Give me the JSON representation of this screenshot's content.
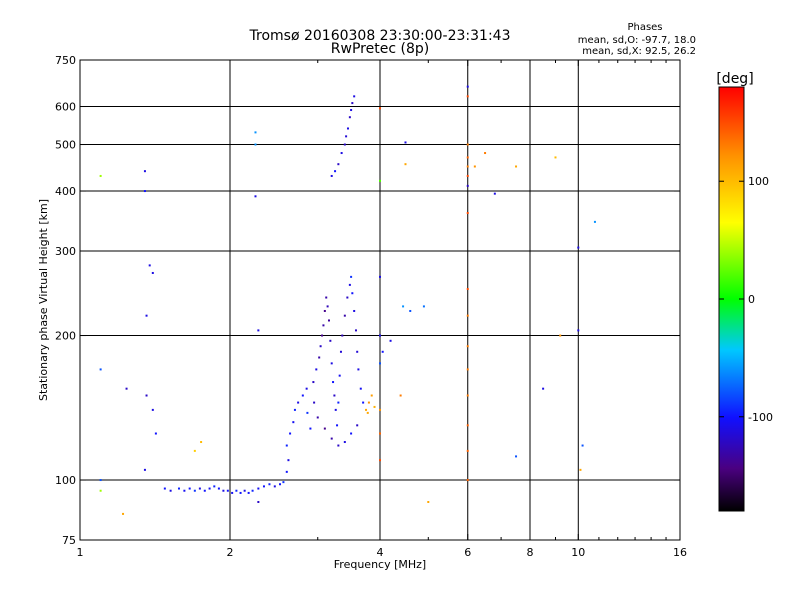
{
  "chart_data": {
    "type": "scatter",
    "title": "Tromsø 20160308 23:30:00-23:31:43",
    "subtitle": "RwPretec (8p)",
    "info": {
      "heading": "Phases",
      "line1": "mean, sd,O: -97.7, 18.0",
      "line2": "mean, sd,X:  92.5, 26.2"
    },
    "xlabel": "Frequency [MHz]",
    "ylabel": "Stationary phase Virtual Height [km]",
    "xscale": "log",
    "yscale": "log",
    "xlim": [
      1,
      16
    ],
    "ylim": [
      75,
      750
    ],
    "xticks": [
      1,
      2,
      4,
      6,
      8,
      10,
      16
    ],
    "xticklabels": [
      "1",
      "2",
      "4",
      "6",
      "8",
      "10",
      "16"
    ],
    "yticks": [
      75,
      100,
      200,
      300,
      400,
      500,
      600,
      750
    ],
    "yticklabels": [
      "75",
      "100",
      "200",
      "300",
      "400",
      "500",
      "600",
      "750"
    ],
    "grid_x": [
      2,
      4,
      6,
      8,
      10
    ],
    "grid_y": [
      100,
      200,
      300,
      400,
      500,
      600
    ],
    "colorbar": {
      "label": "[deg]",
      "range": [
        -180,
        180
      ],
      "ticks": [
        100,
        0,
        -100
      ],
      "ticklabels": [
        "100",
        "0",
        "-100"
      ]
    },
    "series": [
      {
        "points": [
          [
            1.48,
            96,
            -100
          ],
          [
            1.52,
            95,
            -110
          ],
          [
            1.58,
            96,
            -95
          ],
          [
            1.62,
            95,
            -105
          ],
          [
            1.66,
            96,
            -100
          ],
          [
            1.7,
            95,
            -90
          ],
          [
            1.74,
            96,
            -110
          ],
          [
            1.78,
            95,
            -100
          ],
          [
            1.82,
            96,
            -105
          ],
          [
            1.86,
            97,
            -95
          ],
          [
            1.9,
            96,
            -100
          ],
          [
            1.94,
            95,
            -110
          ],
          [
            1.98,
            95,
            -100
          ],
          [
            2.02,
            94,
            -105
          ],
          [
            2.06,
            95,
            -95
          ],
          [
            2.1,
            94,
            -100
          ],
          [
            2.14,
            95,
            -110
          ],
          [
            2.18,
            94,
            -100
          ],
          [
            2.22,
            95,
            -95
          ],
          [
            2.28,
            96,
            -105
          ],
          [
            2.34,
            97,
            -100
          ],
          [
            2.4,
            98,
            -95
          ],
          [
            2.46,
            97,
            -110
          ],
          [
            2.52,
            98,
            -100
          ],
          [
            2.56,
            99,
            -90
          ],
          [
            2.6,
            104,
            -100
          ],
          [
            2.62,
            110,
            -110
          ],
          [
            2.6,
            118,
            -95
          ],
          [
            2.64,
            125,
            -100
          ],
          [
            2.68,
            132,
            -105
          ],
          [
            2.7,
            140,
            -95
          ],
          [
            2.74,
            145,
            -110
          ],
          [
            2.8,
            150,
            -100
          ],
          [
            2.86,
            138,
            -90
          ],
          [
            2.9,
            128,
            -100
          ],
          [
            2.94,
            160,
            -120
          ],
          [
            2.98,
            170,
            -110
          ],
          [
            3.02,
            180,
            -130
          ],
          [
            3.04,
            190,
            -120
          ],
          [
            3.06,
            200,
            -140
          ],
          [
            3.08,
            210,
            -130
          ],
          [
            3.1,
            225,
            -140
          ],
          [
            3.12,
            240,
            -130
          ],
          [
            3.14,
            230,
            -125
          ],
          [
            3.16,
            215,
            -135
          ],
          [
            3.18,
            195,
            -120
          ],
          [
            3.2,
            175,
            -110
          ],
          [
            3.22,
            160,
            -100
          ],
          [
            3.24,
            150,
            -120
          ],
          [
            3.26,
            140,
            -110
          ],
          [
            3.28,
            130,
            -100
          ],
          [
            3.3,
            145,
            -95
          ],
          [
            3.32,
            165,
            -105
          ],
          [
            3.34,
            185,
            -115
          ],
          [
            3.36,
            200,
            -125
          ],
          [
            3.4,
            220,
            -130
          ],
          [
            3.44,
            240,
            -120
          ],
          [
            3.48,
            255,
            -110
          ],
          [
            3.5,
            265,
            -90
          ],
          [
            3.52,
            245,
            -100
          ],
          [
            3.55,
            225,
            -110
          ],
          [
            3.58,
            205,
            -120
          ],
          [
            3.6,
            185,
            -115
          ],
          [
            3.62,
            170,
            -110
          ],
          [
            3.66,
            155,
            -105
          ],
          [
            3.7,
            145,
            -100
          ],
          [
            3.6,
            130,
            -120
          ],
          [
            3.5,
            125,
            -100
          ],
          [
            3.4,
            120,
            -110
          ],
          [
            3.3,
            118,
            -120
          ],
          [
            3.2,
            122,
            -130
          ],
          [
            3.1,
            128,
            -140
          ],
          [
            3.0,
            135,
            -130
          ],
          [
            2.95,
            145,
            -120
          ],
          [
            2.85,
            155,
            -110
          ],
          [
            3.75,
            140,
            110
          ],
          [
            3.8,
            145,
            120
          ],
          [
            3.85,
            150,
            115
          ],
          [
            3.9,
            142,
            105
          ],
          [
            3.78,
            138,
            110
          ],
          [
            3.2,
            430,
            -110
          ],
          [
            3.25,
            440,
            -100
          ],
          [
            3.3,
            455,
            -120
          ],
          [
            3.35,
            480,
            -110
          ],
          [
            3.4,
            500,
            -120
          ],
          [
            3.42,
            520,
            -115
          ],
          [
            3.45,
            540,
            -110
          ],
          [
            3.48,
            570,
            -120
          ],
          [
            3.5,
            590,
            -110
          ],
          [
            3.52,
            610,
            -120
          ],
          [
            3.55,
            630,
            -110
          ],
          [
            1.35,
            440,
            -110
          ],
          [
            1.35,
            400,
            -100
          ],
          [
            1.38,
            280,
            -110
          ],
          [
            1.4,
            270,
            -110
          ],
          [
            1.36,
            220,
            -110
          ],
          [
            1.36,
            150,
            -120
          ],
          [
            1.4,
            140,
            -110
          ],
          [
            1.42,
            125,
            -100
          ],
          [
            1.35,
            105,
            -110
          ],
          [
            1.24,
            155,
            -120
          ],
          [
            1.1,
            170,
            -80
          ],
          [
            1.1,
            100,
            -80
          ],
          [
            1.1,
            430,
            40
          ],
          [
            1.22,
            85,
            110
          ],
          [
            1.1,
            95,
            40
          ],
          [
            1.7,
            115,
            90
          ],
          [
            1.75,
            120,
            100
          ],
          [
            2.25,
            530,
            -60
          ],
          [
            2.25,
            500,
            -60
          ],
          [
            2.25,
            390,
            -110
          ],
          [
            2.28,
            205,
            -110
          ],
          [
            2.28,
            90,
            -120
          ],
          [
            4.0,
            595,
            150
          ],
          [
            4.0,
            420,
            20
          ],
          [
            4.0,
            265,
            -110
          ],
          [
            4.0,
            200,
            -110
          ],
          [
            4.05,
            185,
            -100
          ],
          [
            4.0,
            175,
            -80
          ],
          [
            4.2,
            195,
            -110
          ],
          [
            4.0,
            140,
            120
          ],
          [
            4.0,
            125,
            140
          ],
          [
            4.0,
            110,
            150
          ],
          [
            4.5,
            505,
            -110
          ],
          [
            4.5,
            455,
            110
          ],
          [
            4.45,
            230,
            -60
          ],
          [
            4.6,
            225,
            -80
          ],
          [
            4.9,
            230,
            -70
          ],
          [
            5.0,
            90,
            110
          ],
          [
            4.4,
            150,
            130
          ],
          [
            6.0,
            660,
            -110
          ],
          [
            6.0,
            630,
            150
          ],
          [
            6.0,
            500,
            130
          ],
          [
            6.0,
            470,
            140
          ],
          [
            6.0,
            450,
            130
          ],
          [
            6.0,
            430,
            150
          ],
          [
            6.0,
            410,
            -120
          ],
          [
            6.0,
            360,
            150
          ],
          [
            6.0,
            250,
            150
          ],
          [
            6.0,
            220,
            130
          ],
          [
            6.0,
            190,
            130
          ],
          [
            6.0,
            170,
            130
          ],
          [
            6.0,
            150,
            130
          ],
          [
            6.0,
            130,
            140
          ],
          [
            6.0,
            115,
            140
          ],
          [
            6.0,
            100,
            140
          ],
          [
            6.2,
            450,
            120
          ],
          [
            6.5,
            480,
            130
          ],
          [
            6.8,
            395,
            -110
          ],
          [
            7.5,
            450,
            110
          ],
          [
            7.5,
            112,
            -80
          ],
          [
            8.5,
            155,
            -110
          ],
          [
            9.0,
            470,
            100
          ],
          [
            9.2,
            200,
            120
          ],
          [
            10.0,
            305,
            -110
          ],
          [
            10.0,
            205,
            -110
          ],
          [
            10.2,
            118,
            -80
          ],
          [
            10.1,
            105,
            110
          ],
          [
            10.8,
            345,
            -60
          ]
        ]
      }
    ]
  }
}
